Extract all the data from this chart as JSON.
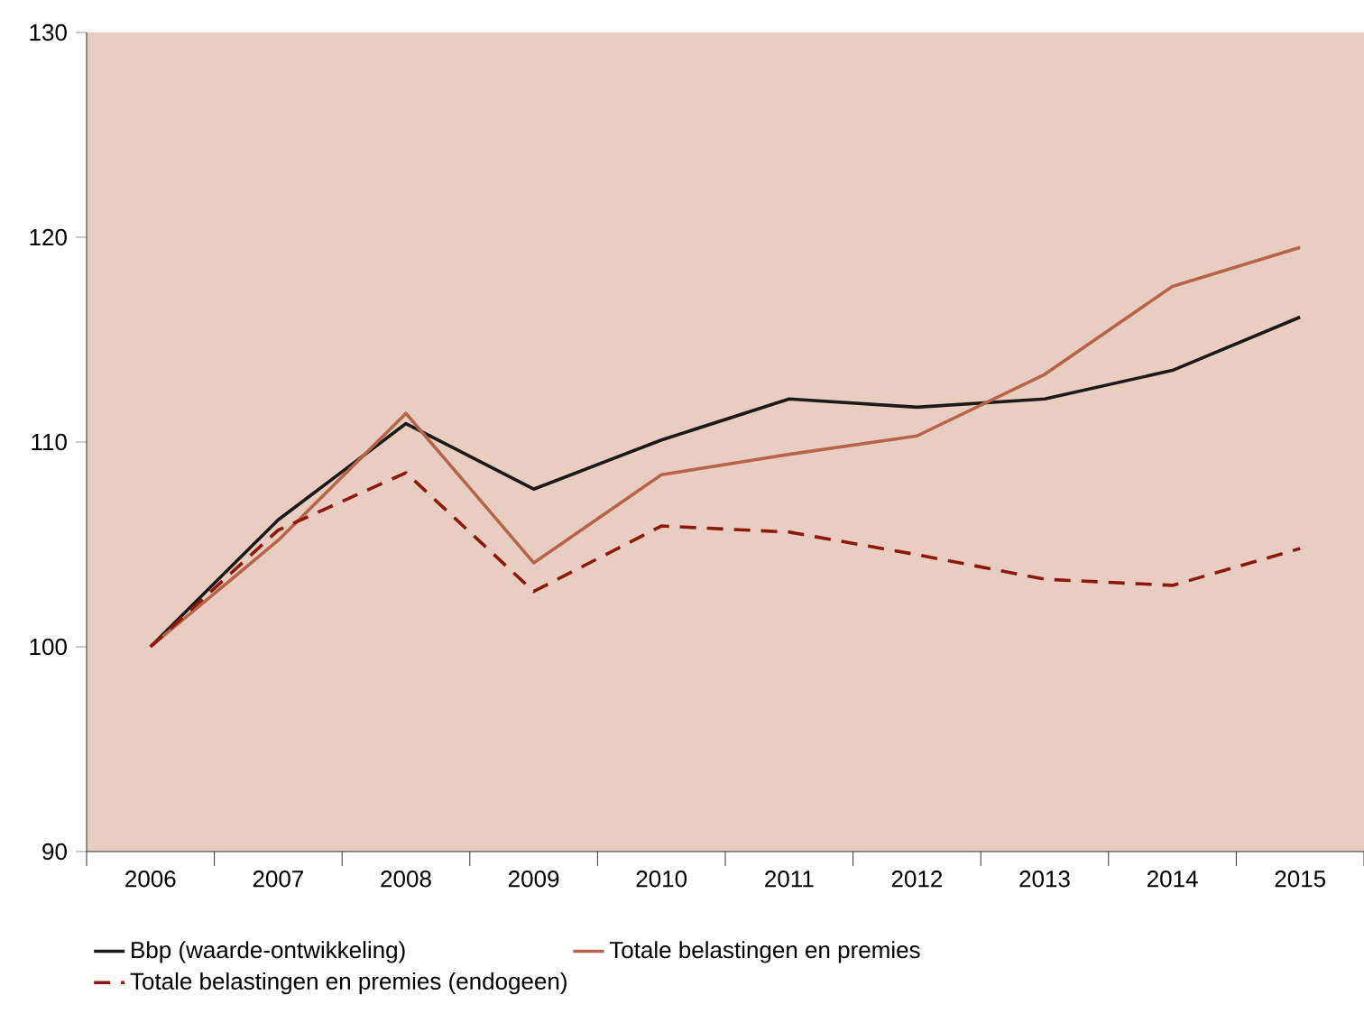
{
  "chart_data": {
    "type": "line",
    "categories": [
      "2006",
      "2007",
      "2008",
      "2009",
      "2010",
      "2011",
      "2012",
      "2013",
      "2014",
      "2015"
    ],
    "series": [
      {
        "name": "Bbp (waarde-ontwikkeling)",
        "color": "#1a1a1a",
        "line_style": "solid",
        "values": [
          100,
          106.2,
          110.9,
          107.7,
          110.1,
          112.1,
          111.7,
          112.1,
          113.5,
          116.1
        ]
      },
      {
        "name": "Totale belastingen en premies",
        "color": "#b5664a",
        "line_style": "solid",
        "values": [
          100,
          105.2,
          111.4,
          104.1,
          108.4,
          109.4,
          110.3,
          113.3,
          117.6,
          119.5
        ]
      },
      {
        "name": "Totale belastingen en premies (endogeen)",
        "color": "#8b1a0a",
        "line_style": "dashed",
        "values": [
          100,
          105.7,
          108.5,
          102.7,
          105.9,
          105.6,
          104.5,
          103.3,
          103.0,
          104.8
        ]
      }
    ],
    "ylim": [
      90,
      130
    ],
    "yticks": [
      90,
      100,
      110,
      120,
      130
    ],
    "grid": false,
    "legend": "bottom",
    "marker": "none"
  }
}
